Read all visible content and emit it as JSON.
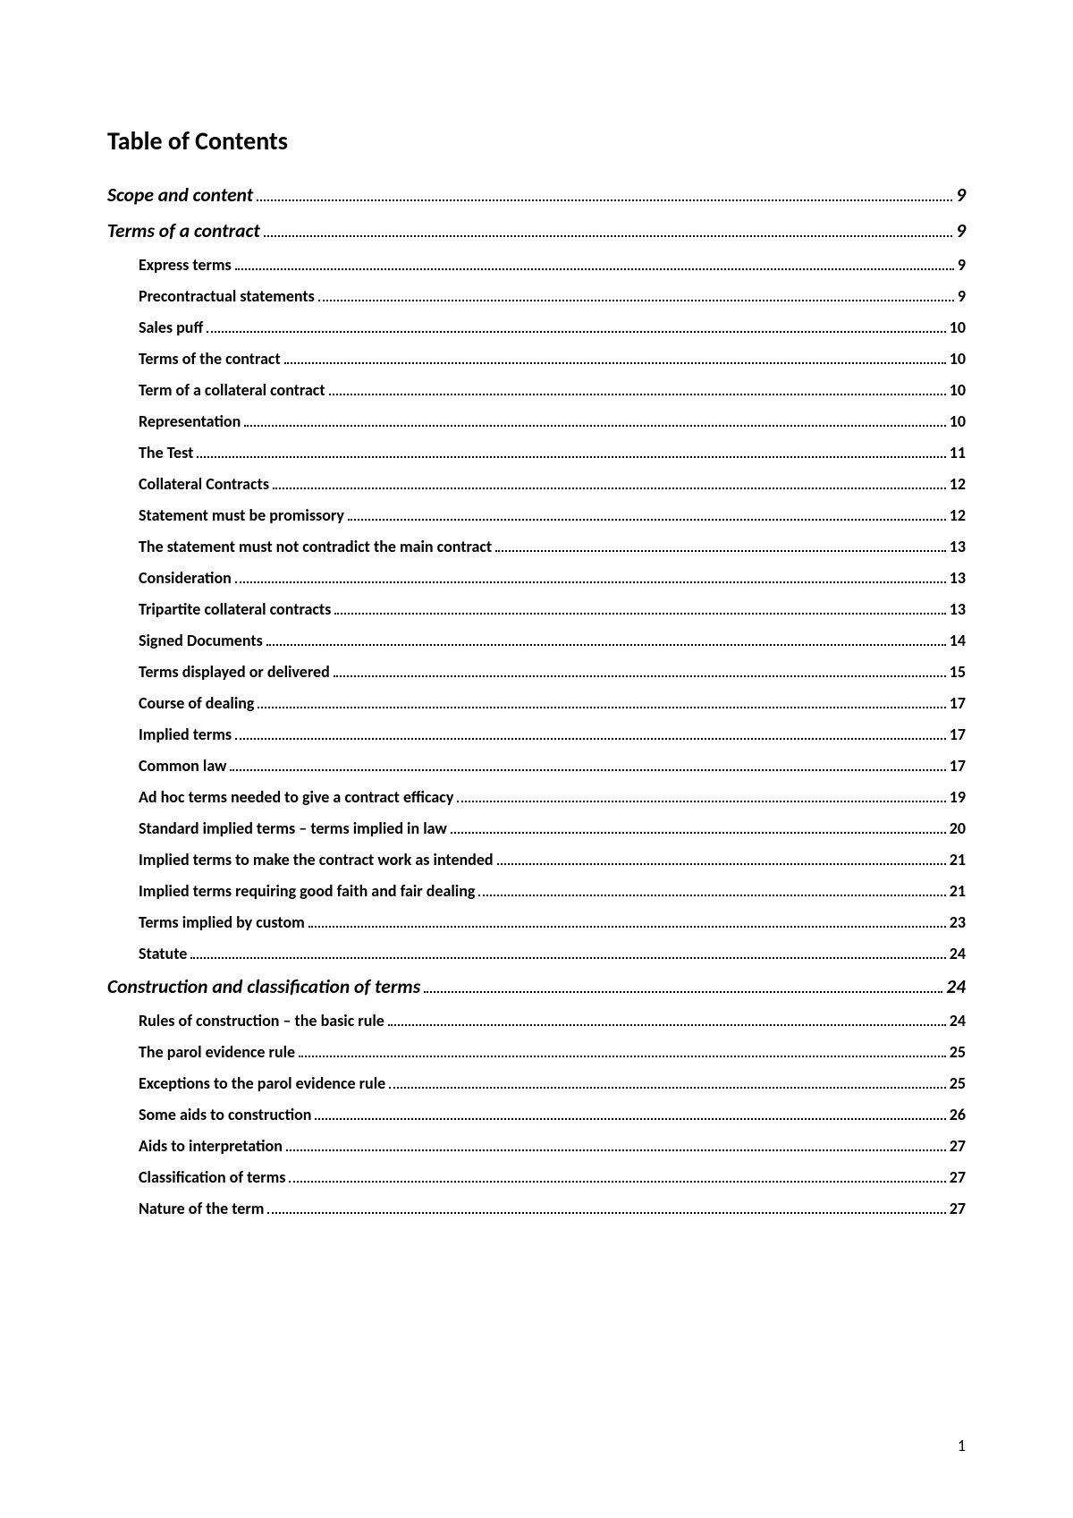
{
  "title": "Table of Contents",
  "page_number": "1",
  "entries": [
    {
      "level": 1,
      "label": "Scope and content",
      "page": "9"
    },
    {
      "level": 1,
      "label": "Terms of a contract",
      "page": "9"
    },
    {
      "level": 2,
      "label": "Express terms",
      "page": "9"
    },
    {
      "level": 2,
      "label": "Precontractual statements",
      "page": "9"
    },
    {
      "level": 2,
      "label": "Sales puff",
      "page": "10"
    },
    {
      "level": 2,
      "label": "Terms of the contract",
      "page": "10"
    },
    {
      "level": 2,
      "label": "Term of a collateral contract",
      "page": "10"
    },
    {
      "level": 2,
      "label": "Representation",
      "page": "10"
    },
    {
      "level": 2,
      "label": "The Test",
      "page": "11"
    },
    {
      "level": 2,
      "label": "Collateral Contracts",
      "page": "12"
    },
    {
      "level": 2,
      "label": "Statement must be promissory",
      "page": "12"
    },
    {
      "level": 2,
      "label": "The statement must not contradict the main contract",
      "page": "13"
    },
    {
      "level": 2,
      "label": "Consideration",
      "page": "13"
    },
    {
      "level": 2,
      "label": "Tripartite collateral contracts",
      "page": "13"
    },
    {
      "level": 2,
      "label": "Signed Documents",
      "page": "14"
    },
    {
      "level": 2,
      "label": "Terms displayed or delivered",
      "page": "15"
    },
    {
      "level": 2,
      "label": "Course of dealing",
      "page": "17"
    },
    {
      "level": 2,
      "label": "Implied terms",
      "page": "17"
    },
    {
      "level": 2,
      "label": "Common law",
      "page": "17"
    },
    {
      "level": 2,
      "label": "Ad hoc terms needed to give a contract efficacy",
      "page": "19"
    },
    {
      "level": 2,
      "label": "Standard implied terms – terms implied in law",
      "page": "20"
    },
    {
      "level": 2,
      "label": "Implied terms to make the contract work as intended",
      "page": "21"
    },
    {
      "level": 2,
      "label": "Implied terms requiring good faith and fair dealing",
      "page": "21"
    },
    {
      "level": 2,
      "label": "Terms implied by custom",
      "page": "23"
    },
    {
      "level": 2,
      "label": "Statute",
      "page": "24"
    },
    {
      "level": 1,
      "label": "Construction and classification of terms",
      "page": "24"
    },
    {
      "level": 2,
      "label": "Rules of construction – the basic rule",
      "page": "24"
    },
    {
      "level": 2,
      "label": "The parol evidence rule",
      "page": "25"
    },
    {
      "level": 2,
      "label": "Exceptions to the parol evidence rule",
      "page": "25"
    },
    {
      "level": 2,
      "label": "Some aids to construction",
      "page": "26"
    },
    {
      "level": 2,
      "label": "Aids to interpretation",
      "page": "27"
    },
    {
      "level": 2,
      "label": "Classification of terms",
      "page": "27"
    },
    {
      "level": 2,
      "label": "Nature of the term",
      "page": "27"
    }
  ]
}
